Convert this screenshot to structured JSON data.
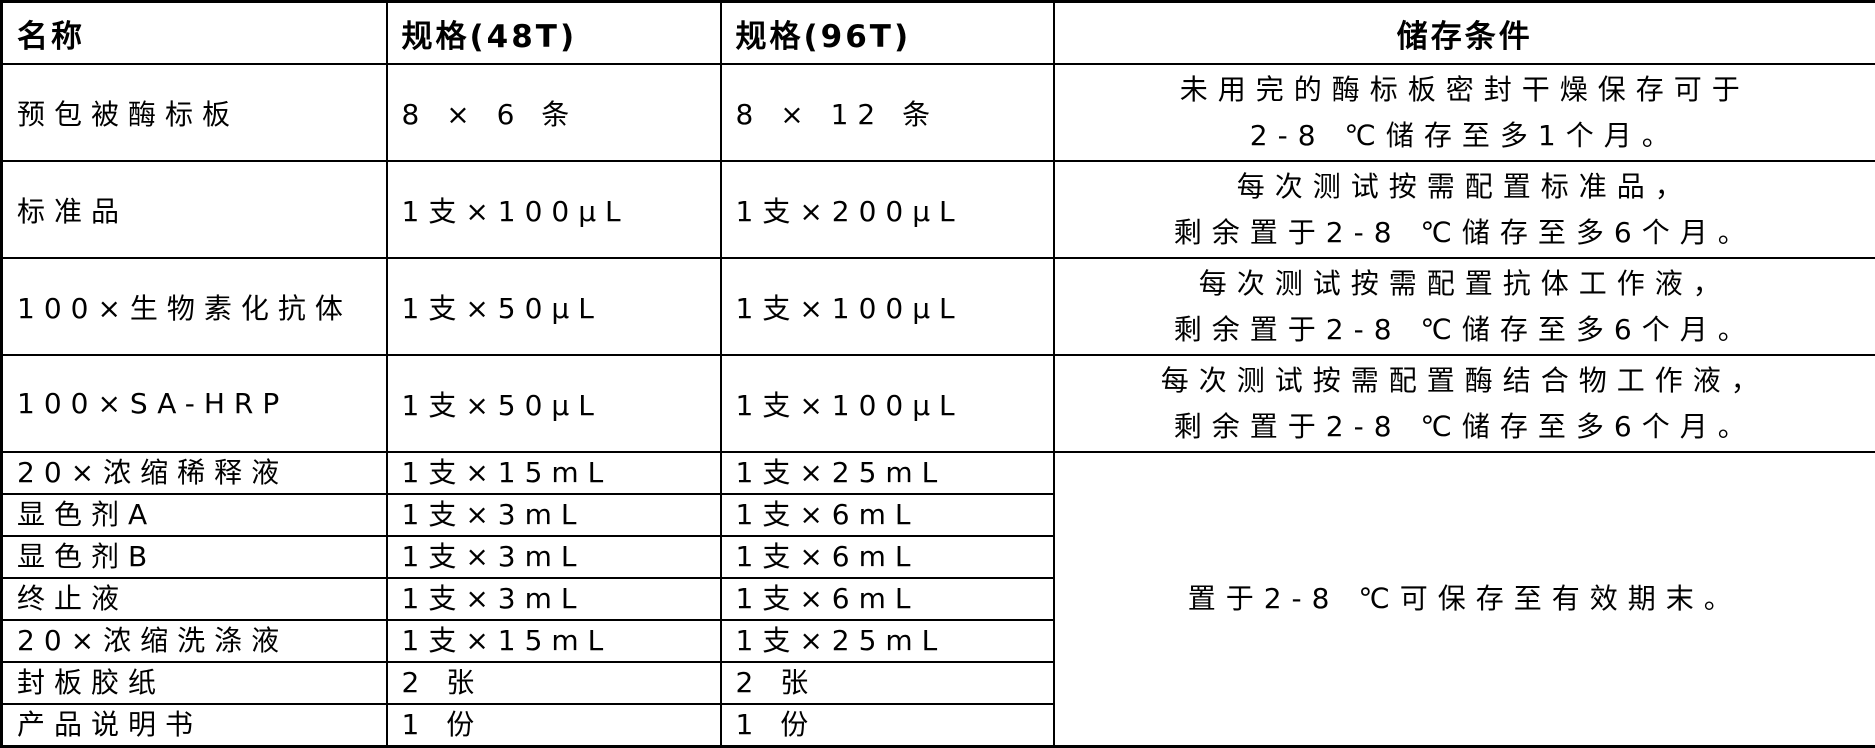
{
  "headers": [
    "名称",
    "规格(48T)",
    "规格(96T)",
    "储存条件"
  ],
  "rows": [
    {
      "name": "预包被酶标板",
      "spec48": "8 × 6 条",
      "spec96": "8 × 12 条",
      "storage": [
        "未用完的酶标板密封干燥保存可于",
        "2-8 ℃储存至多1个月。"
      ]
    },
    {
      "name": "标准品",
      "spec48": "1支×100μL",
      "spec96": "1支×200μL",
      "storage": [
        "每次测试按需配置标准品，",
        "剩余置于2-8 ℃储存至多6个月。"
      ]
    },
    {
      "name": "100×生物素化抗体",
      "spec48": "1支×50μL",
      "spec96": "1支×100μL",
      "storage": [
        "每次测试按需配置抗体工作液，",
        "剩余置于2-8 ℃储存至多6个月。"
      ]
    },
    {
      "name": "100×SA-HRP",
      "spec48": "1支×50μL",
      "spec96": "1支×100μL",
      "storage": [
        "每次测试按需配置酶结合物工作液，",
        "剩余置于2-8 ℃储存至多6个月。"
      ]
    },
    {
      "name": "20×浓缩稀释液",
      "spec48": "1支×15mL",
      "spec96": "1支×25mL"
    },
    {
      "name": "显色剂A",
      "spec48": "1支×3mL",
      "spec96": "1支×6mL"
    },
    {
      "name": "显色剂B",
      "spec48": "1支×3mL",
      "spec96": "1支×6mL"
    },
    {
      "name": "终止液",
      "spec48": "1支×3mL",
      "spec96": "1支×6mL"
    },
    {
      "name": "20×浓缩洗涤液",
      "spec48": "1支×15mL",
      "spec96": "1支×25mL"
    },
    {
      "name": "封板胶纸",
      "spec48": "2 张",
      "spec96": "2 张"
    },
    {
      "name": "产品说明书",
      "spec48": "1 份",
      "spec96": "1 份"
    }
  ],
  "merged_storage": "置于2-8 ℃可保存至有效期末。"
}
